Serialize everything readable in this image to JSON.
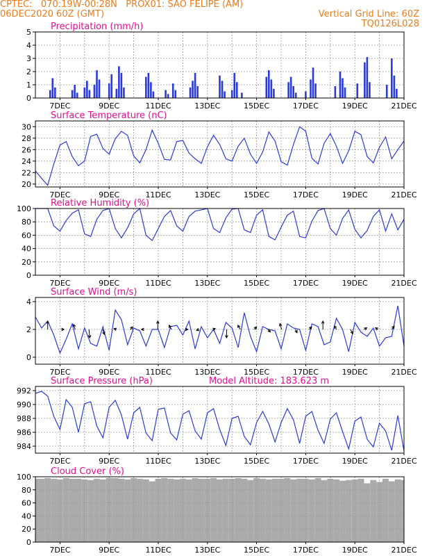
{
  "header": {
    "line1_left": "CPTEC:   070:19W-00:28N   PROX01: SAO FELIPE (AM)",
    "line2_left": "06DEC2020 60Z (GMT)",
    "line2_right": "Vertical Grid Line: 60Z",
    "line3_right": "TQ0126L028"
  },
  "colors": {
    "header": "#e87d1e",
    "title": "#e0108f",
    "line": "#2a3bd6",
    "bar": "#2a3bd6",
    "cloud": "#aaaaaa",
    "grid": "#9a9a9a"
  },
  "x_tick_labels": [
    "7DEC",
    "9DEC",
    "11DEC",
    "13DEC",
    "15DEC",
    "17DEC",
    "19DEC",
    "21DEC"
  ],
  "model_altitude": "Model Altitude: 183.623 m",
  "chart_data": [
    {
      "type": "bar",
      "title": "Precipitation (mm/h)",
      "xlim": [
        6.0,
        21.0
      ],
      "ylim": [
        0,
        5
      ],
      "yticks": [
        0,
        1,
        2,
        3,
        4,
        5
      ],
      "grid": true,
      "x": [
        6.6,
        6.7,
        6.8,
        7.5,
        7.6,
        7.7,
        8.0,
        8.1,
        8.2,
        8.4,
        8.5,
        8.6,
        9.0,
        9.1,
        9.3,
        9.4,
        9.5,
        9.6,
        10.5,
        10.6,
        10.7,
        10.8,
        11.3,
        11.4,
        11.6,
        11.7,
        12.3,
        12.4,
        12.5,
        12.6,
        13.5,
        13.6,
        13.7,
        14.0,
        14.1,
        14.2,
        14.4,
        15.4,
        15.5,
        15.6,
        15.7,
        16.3,
        16.4,
        16.5,
        16.6,
        17.0,
        17.2,
        17.3,
        17.4,
        18.2,
        18.4,
        18.5,
        18.6,
        19.1,
        19.4,
        19.5,
        19.6,
        20.3,
        20.5,
        20.6,
        20.7
      ],
      "values": [
        0.6,
        1.5,
        0.8,
        0.6,
        1.0,
        0.4,
        0.8,
        1.3,
        0.6,
        1.0,
        2.1,
        1.4,
        1.1,
        1.8,
        0.7,
        2.4,
        1.9,
        0.8,
        1.6,
        1.9,
        1.2,
        0.5,
        0.6,
        0.3,
        1.1,
        0.6,
        0.8,
        1.3,
        1.9,
        0.9,
        1.7,
        1.3,
        0.5,
        0.6,
        1.9,
        1.2,
        0.4,
        1.6,
        2.1,
        1.4,
        0.7,
        1.2,
        1.6,
        0.9,
        0.4,
        0.5,
        1.4,
        2.3,
        1.1,
        0.9,
        2.0,
        1.5,
        0.8,
        1.1,
        2.7,
        3.1,
        1.2,
        1.0,
        3.0,
        1.7,
        0.7
      ]
    },
    {
      "type": "line",
      "title": "Surface Temperature (nC)",
      "xlim": [
        6.0,
        21.0
      ],
      "ylim": [
        19.5,
        31.0
      ],
      "yticks": [
        20,
        22,
        24,
        26,
        28,
        30
      ],
      "grid": true,
      "x": [
        6.0,
        6.25,
        6.5,
        6.75,
        7.0,
        7.25,
        7.5,
        7.75,
        8.0,
        8.25,
        8.5,
        8.75,
        9.0,
        9.25,
        9.5,
        9.75,
        10.0,
        10.25,
        10.5,
        10.75,
        11.0,
        11.25,
        11.5,
        11.75,
        12.0,
        12.25,
        12.5,
        12.75,
        13.0,
        13.25,
        13.5,
        13.75,
        14.0,
        14.25,
        14.5,
        14.75,
        15.0,
        15.25,
        15.5,
        15.75,
        16.0,
        16.25,
        16.5,
        16.75,
        17.0,
        17.25,
        17.5,
        17.75,
        18.0,
        18.25,
        18.5,
        18.75,
        19.0,
        19.25,
        19.5,
        19.75,
        20.0,
        20.25,
        20.5,
        20.75,
        21.0
      ],
      "values": [
        22.3,
        21.0,
        19.8,
        23.5,
        26.8,
        27.4,
        24.8,
        23.2,
        24.0,
        28.3,
        28.7,
        26.2,
        25.2,
        27.9,
        29.2,
        28.5,
        24.9,
        23.7,
        26.0,
        29.4,
        27.1,
        24.3,
        24.2,
        27.4,
        27.6,
        25.4,
        24.4,
        23.6,
        26.5,
        28.5,
        26.9,
        24.4,
        24.0,
        26.6,
        28.0,
        25.2,
        23.6,
        25.6,
        29.1,
        27.5,
        23.9,
        23.3,
        26.9,
        30.0,
        29.2,
        24.5,
        23.5,
        27.1,
        28.8,
        26.6,
        23.6,
        25.8,
        29.2,
        28.6,
        24.8,
        23.7,
        26.4,
        28.2,
        24.4,
        26.0,
        27.5
      ]
    },
    {
      "type": "line",
      "title": "Relative Humidity (%)",
      "xlim": [
        6.0,
        21.0
      ],
      "ylim": [
        0,
        100
      ],
      "yticks": [
        0,
        20,
        40,
        60,
        80,
        100
      ],
      "grid": true,
      "x": [
        6.0,
        6.25,
        6.5,
        6.75,
        7.0,
        7.25,
        7.5,
        7.75,
        8.0,
        8.25,
        8.5,
        8.75,
        9.0,
        9.25,
        9.5,
        9.75,
        10.0,
        10.25,
        10.5,
        10.75,
        11.0,
        11.25,
        11.5,
        11.75,
        12.0,
        12.25,
        12.5,
        12.75,
        13.0,
        13.25,
        13.5,
        13.75,
        14.0,
        14.25,
        14.5,
        14.75,
        15.0,
        15.25,
        15.5,
        15.75,
        16.0,
        16.25,
        16.5,
        16.75,
        17.0,
        17.25,
        17.5,
        17.75,
        18.0,
        18.25,
        18.5,
        18.75,
        19.0,
        19.25,
        19.5,
        19.75,
        20.0,
        20.25,
        20.5,
        20.75,
        21.0
      ],
      "values": [
        100,
        100,
        100,
        74,
        66,
        82,
        93,
        98,
        62,
        58,
        84,
        97,
        100,
        70,
        56,
        71,
        92,
        100,
        60,
        52,
        70,
        88,
        97,
        74,
        66,
        88,
        96,
        98,
        100,
        70,
        64,
        86,
        99,
        100,
        68,
        64,
        90,
        98,
        58,
        53,
        72,
        90,
        96,
        58,
        56,
        81,
        97,
        100,
        70,
        60,
        85,
        98,
        69,
        56,
        67,
        88,
        98,
        66,
        92,
        68,
        84
      ]
    },
    {
      "type": "line",
      "title": "Surface Wind (m/s)",
      "xlim": [
        6.0,
        21.0
      ],
      "ylim": [
        -0.5,
        4.3
      ],
      "yticks": [
        0,
        2,
        4
      ],
      "grid": true,
      "x": [
        6.0,
        6.25,
        6.5,
        6.75,
        7.0,
        7.25,
        7.5,
        7.75,
        8.0,
        8.25,
        8.5,
        8.75,
        9.0,
        9.25,
        9.5,
        9.75,
        10.0,
        10.25,
        10.5,
        10.75,
        11.0,
        11.25,
        11.5,
        11.75,
        12.0,
        12.25,
        12.5,
        12.75,
        13.0,
        13.25,
        13.5,
        13.75,
        14.0,
        14.25,
        14.5,
        14.75,
        15.0,
        15.25,
        15.5,
        15.75,
        16.0,
        16.25,
        16.5,
        16.75,
        17.0,
        17.25,
        17.5,
        17.75,
        18.0,
        18.25,
        18.5,
        18.75,
        19.0,
        19.25,
        19.5,
        19.75,
        20.0,
        20.25,
        20.5,
        20.75,
        21.0
      ],
      "values": [
        2.9,
        2.1,
        2.6,
        1.6,
        0.3,
        1.3,
        2.4,
        0.6,
        2.1,
        1.0,
        0.8,
        2.2,
        0.5,
        3.4,
        2.7,
        0.9,
        2.1,
        1.9,
        0.8,
        2.0,
        2.0,
        0.7,
        2.2,
        2.3,
        1.6,
        2.6,
        0.6,
        2.2,
        1.4,
        2.0,
        1.0,
        2.5,
        2.1,
        0.7,
        3.2,
        1.5,
        0.4,
        2.2,
        2.0,
        1.9,
        0.6,
        2.4,
        2.1,
        2.0,
        0.5,
        2.4,
        2.2,
        0.9,
        1.1,
        2.8,
        2.0,
        0.4,
        2.5,
        1.8,
        1.5,
        2.1,
        0.8,
        1.4,
        1.5,
        3.7,
        0.8
      ],
      "arrows_u": [
        0.0,
        0.3,
        -0.2,
        0.1,
        0.2,
        -0.3,
        0.3,
        -0.3,
        0.0,
        -0.3,
        0.3,
        -0.3,
        0.3,
        0.0,
        -0.3,
        0.3,
        0.3,
        -0.2,
        0.2,
        0.3,
        0.0,
        -0.3,
        0.3,
        0.3,
        -0.3,
        0.3
      ],
      "arrows_v": [
        1.0,
        0.0,
        0.6,
        -1.0,
        -0.6,
        0.1,
        0.3,
        0.0,
        1.0,
        0.5,
        0.0,
        -0.1,
        0.1,
        -1.0,
        0.5,
        0.3,
        -0.3,
        0.7,
        -0.4,
        0.3,
        1.0,
        0.4,
        -0.5,
        0.2,
        0.2,
        0.4
      ]
    },
    {
      "type": "line",
      "title": "Surface Pressure (hPa)",
      "xlim": [
        6.0,
        21.0
      ],
      "ylim": [
        983.0,
        992.6
      ],
      "yticks": [
        984,
        986,
        988,
        990,
        992
      ],
      "grid": true,
      "x": [
        6.0,
        6.25,
        6.5,
        6.75,
        7.0,
        7.25,
        7.5,
        7.75,
        8.0,
        8.25,
        8.5,
        8.75,
        9.0,
        9.25,
        9.5,
        9.75,
        10.0,
        10.25,
        10.5,
        10.75,
        11.0,
        11.25,
        11.5,
        11.75,
        12.0,
        12.25,
        12.5,
        12.75,
        13.0,
        13.25,
        13.5,
        13.75,
        14.0,
        14.25,
        14.5,
        14.75,
        15.0,
        15.25,
        15.5,
        15.75,
        16.0,
        16.25,
        16.5,
        16.75,
        17.0,
        17.25,
        17.5,
        17.75,
        18.0,
        18.25,
        18.5,
        18.75,
        19.0,
        19.25,
        19.5,
        19.75,
        20.0,
        20.25,
        20.5,
        20.75,
        21.0
      ],
      "values": [
        991.6,
        991.9,
        991.2,
        988.3,
        986.4,
        990.7,
        989.6,
        986.0,
        990.1,
        990.4,
        986.9,
        985.2,
        989.6,
        990.6,
        988.5,
        985.0,
        988.8,
        989.6,
        985.9,
        984.8,
        989.3,
        989.5,
        985.9,
        984.9,
        988.6,
        989.1,
        986.2,
        985.0,
        988.8,
        989.4,
        986.4,
        984.1,
        988.0,
        988.3,
        985.4,
        984.2,
        987.4,
        989.0,
        987.2,
        984.6,
        987.4,
        989.4,
        987.8,
        984.4,
        988.3,
        989.0,
        986.3,
        984.4,
        987.9,
        988.8,
        986.1,
        983.6,
        987.6,
        988.2,
        985.0,
        983.9,
        987.3,
        986.2,
        983.4,
        988.4,
        983.3
      ]
    },
    {
      "type": "bar",
      "title": "Cloud Cover (%)",
      "xlim": [
        6.0,
        21.0
      ],
      "ylim": [
        0,
        100
      ],
      "yticks": [
        0,
        20,
        40,
        60,
        80,
        100
      ],
      "grid": true,
      "x": [
        6.0,
        6.25,
        6.5,
        6.75,
        7.0,
        7.25,
        7.5,
        7.75,
        8.0,
        8.25,
        8.5,
        8.75,
        9.0,
        9.25,
        9.5,
        9.75,
        10.0,
        10.25,
        10.5,
        10.75,
        11.0,
        11.25,
        11.5,
        11.75,
        12.0,
        12.25,
        12.5,
        12.75,
        13.0,
        13.25,
        13.5,
        13.75,
        14.0,
        14.25,
        14.5,
        14.75,
        15.0,
        15.25,
        15.5,
        15.75,
        16.0,
        16.25,
        16.5,
        16.75,
        17.0,
        17.25,
        17.5,
        17.75,
        18.0,
        18.25,
        18.5,
        18.75,
        19.0,
        19.25,
        19.5,
        19.75,
        20.0,
        20.25,
        20.5,
        20.75,
        21.0
      ],
      "values": [
        97,
        97,
        98,
        97,
        96,
        98,
        97,
        97,
        96,
        95,
        97,
        96,
        98,
        98,
        97,
        96,
        98,
        97,
        96,
        93,
        97,
        98,
        97,
        96,
        97,
        96,
        98,
        97,
        97,
        98,
        96,
        97,
        97,
        98,
        97,
        95,
        98,
        97,
        96,
        97,
        97,
        98,
        96,
        97,
        97,
        96,
        98,
        95,
        97,
        96,
        94,
        95,
        96,
        97,
        90,
        95,
        92,
        97,
        93,
        96,
        95
      ]
    }
  ]
}
